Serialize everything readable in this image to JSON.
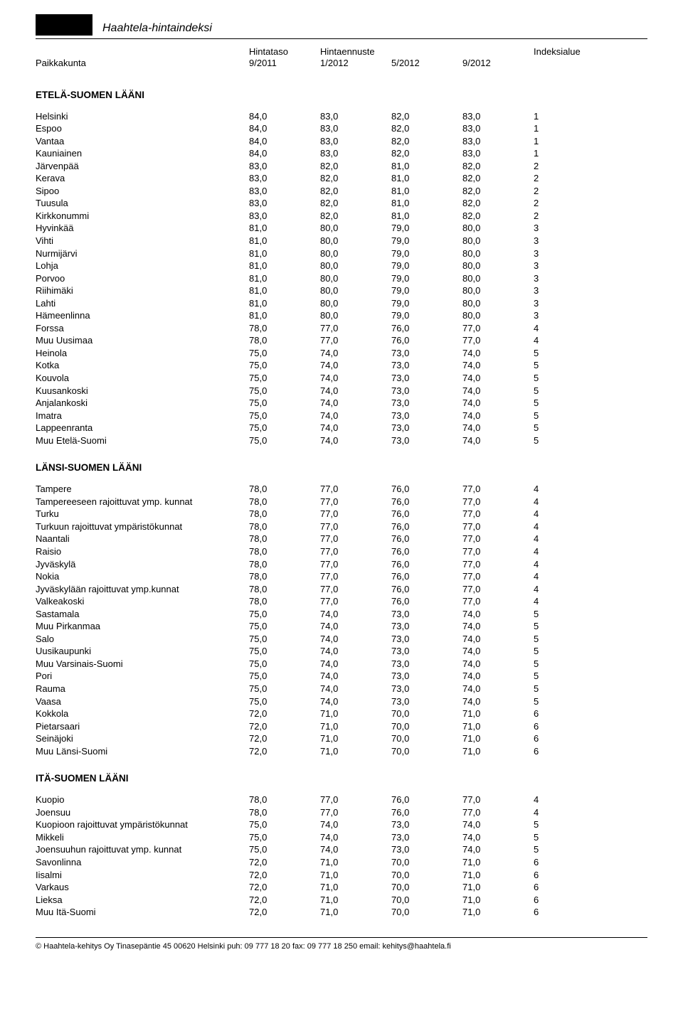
{
  "doc_title": "Haahtela-hintaindeksi",
  "header": {
    "col1": "Paikkakunta",
    "col2_top": "Hintataso",
    "col2_bot": "9/2011",
    "col3_top": "Hintaennuste",
    "col3_bot": "1/2012",
    "col4_top": "",
    "col4_bot": "5/2012",
    "col5_top": "",
    "col5_bot": "9/2012",
    "col6_top": "Indeksialue",
    "col6_bot": ""
  },
  "sections": [
    {
      "title": "ETELÄ-SUOMEN LÄÄNI",
      "rows": [
        [
          "Helsinki",
          "84,0",
          "83,0",
          "82,0",
          "83,0",
          "1"
        ],
        [
          "Espoo",
          "84,0",
          "83,0",
          "82,0",
          "83,0",
          "1"
        ],
        [
          "Vantaa",
          "84,0",
          "83,0",
          "82,0",
          "83,0",
          "1"
        ],
        [
          "Kauniainen",
          "84,0",
          "83,0",
          "82,0",
          "83,0",
          "1"
        ],
        [
          "Järvenpää",
          "83,0",
          "82,0",
          "81,0",
          "82,0",
          "2"
        ],
        [
          "Kerava",
          "83,0",
          "82,0",
          "81,0",
          "82,0",
          "2"
        ],
        [
          "Sipoo",
          "83,0",
          "82,0",
          "81,0",
          "82,0",
          "2"
        ],
        [
          "Tuusula",
          "83,0",
          "82,0",
          "81,0",
          "82,0",
          "2"
        ],
        [
          "Kirkkonummi",
          "83,0",
          "82,0",
          "81,0",
          "82,0",
          "2"
        ],
        [
          "Hyvinkää",
          "81,0",
          "80,0",
          "79,0",
          "80,0",
          "3"
        ],
        [
          "Vihti",
          "81,0",
          "80,0",
          "79,0",
          "80,0",
          "3"
        ],
        [
          "Nurmijärvi",
          "81,0",
          "80,0",
          "79,0",
          "80,0",
          "3"
        ],
        [
          "Lohja",
          "81,0",
          "80,0",
          "79,0",
          "80,0",
          "3"
        ],
        [
          "Porvoo",
          "81,0",
          "80,0",
          "79,0",
          "80,0",
          "3"
        ],
        [
          "Riihimäki",
          "81,0",
          "80,0",
          "79,0",
          "80,0",
          "3"
        ],
        [
          "Lahti",
          "81,0",
          "80,0",
          "79,0",
          "80,0",
          "3"
        ],
        [
          "Hämeenlinna",
          "81,0",
          "80,0",
          "79,0",
          "80,0",
          "3"
        ],
        [
          "Forssa",
          "78,0",
          "77,0",
          "76,0",
          "77,0",
          "4"
        ],
        [
          "Muu Uusimaa",
          "78,0",
          "77,0",
          "76,0",
          "77,0",
          "4"
        ],
        [
          "Heinola",
          "75,0",
          "74,0",
          "73,0",
          "74,0",
          "5"
        ],
        [
          "Kotka",
          "75,0",
          "74,0",
          "73,0",
          "74,0",
          "5"
        ],
        [
          "Kouvola",
          "75,0",
          "74,0",
          "73,0",
          "74,0",
          "5"
        ],
        [
          "Kuusankoski",
          "75,0",
          "74,0",
          "73,0",
          "74,0",
          "5"
        ],
        [
          "Anjalankoski",
          "75,0",
          "74,0",
          "73,0",
          "74,0",
          "5"
        ],
        [
          "Imatra",
          "75,0",
          "74,0",
          "73,0",
          "74,0",
          "5"
        ],
        [
          "Lappeenranta",
          "75,0",
          "74,0",
          "73,0",
          "74,0",
          "5"
        ],
        [
          "Muu Etelä-Suomi",
          "75,0",
          "74,0",
          "73,0",
          "74,0",
          "5"
        ]
      ]
    },
    {
      "title": "LÄNSI-SUOMEN LÄÄNI",
      "rows": [
        [
          "Tampere",
          "78,0",
          "77,0",
          "76,0",
          "77,0",
          "4"
        ],
        [
          "Tampereeseen rajoittuvat ymp. kunnat",
          "78,0",
          "77,0",
          "76,0",
          "77,0",
          "4"
        ],
        [
          "Turku",
          "78,0",
          "77,0",
          "76,0",
          "77,0",
          "4"
        ],
        [
          "Turkuun rajoittuvat ympäristökunnat",
          "78,0",
          "77,0",
          "76,0",
          "77,0",
          "4"
        ],
        [
          "Naantali",
          "78,0",
          "77,0",
          "76,0",
          "77,0",
          "4"
        ],
        [
          "Raisio",
          "78,0",
          "77,0",
          "76,0",
          "77,0",
          "4"
        ],
        [
          "Jyväskylä",
          "78,0",
          "77,0",
          "76,0",
          "77,0",
          "4"
        ],
        [
          "Nokia",
          "78,0",
          "77,0",
          "76,0",
          "77,0",
          "4"
        ],
        [
          "Jyväskylään rajoittuvat ymp.kunnat",
          "78,0",
          "77,0",
          "76,0",
          "77,0",
          "4"
        ],
        [
          "Valkeakoski",
          "78,0",
          "77,0",
          "76,0",
          "77,0",
          "4"
        ],
        [
          "Sastamala",
          "75,0",
          "74,0",
          "73,0",
          "74,0",
          "5"
        ],
        [
          "Muu Pirkanmaa",
          "75,0",
          "74,0",
          "73,0",
          "74,0",
          "5"
        ],
        [
          "Salo",
          "75,0",
          "74,0",
          "73,0",
          "74,0",
          "5"
        ],
        [
          "Uusikaupunki",
          "75,0",
          "74,0",
          "73,0",
          "74,0",
          "5"
        ],
        [
          "Muu Varsinais-Suomi",
          "75,0",
          "74,0",
          "73,0",
          "74,0",
          "5"
        ],
        [
          "Pori",
          "75,0",
          "74,0",
          "73,0",
          "74,0",
          "5"
        ],
        [
          "Rauma",
          "75,0",
          "74,0",
          "73,0",
          "74,0",
          "5"
        ],
        [
          "Vaasa",
          "75,0",
          "74,0",
          "73,0",
          "74,0",
          "5"
        ],
        [
          "Kokkola",
          "72,0",
          "71,0",
          "70,0",
          "71,0",
          "6"
        ],
        [
          "Pietarsaari",
          "72,0",
          "71,0",
          "70,0",
          "71,0",
          "6"
        ],
        [
          "Seinäjoki",
          "72,0",
          "71,0",
          "70,0",
          "71,0",
          "6"
        ],
        [
          "Muu Länsi-Suomi",
          "72,0",
          "71,0",
          "70,0",
          "71,0",
          "6"
        ]
      ]
    },
    {
      "title": "ITÄ-SUOMEN LÄÄNI",
      "rows": [
        [
          "Kuopio",
          "78,0",
          "77,0",
          "76,0",
          "77,0",
          "4"
        ],
        [
          "Joensuu",
          "78,0",
          "77,0",
          "76,0",
          "77,0",
          "4"
        ],
        [
          "Kuopioon rajoittuvat ympäristökunnat",
          "75,0",
          "74,0",
          "73,0",
          "74,0",
          "5"
        ],
        [
          "Mikkeli",
          "75,0",
          "74,0",
          "73,0",
          "74,0",
          "5"
        ],
        [
          "Joensuuhun rajoittuvat ymp. kunnat",
          "75,0",
          "74,0",
          "73,0",
          "74,0",
          "5"
        ],
        [
          "Savonlinna",
          "72,0",
          "71,0",
          "70,0",
          "71,0",
          "6"
        ],
        [
          "Iisalmi",
          "72,0",
          "71,0",
          "70,0",
          "71,0",
          "6"
        ],
        [
          "Varkaus",
          "72,0",
          "71,0",
          "70,0",
          "71,0",
          "6"
        ],
        [
          "Lieksa",
          "72,0",
          "71,0",
          "70,0",
          "71,0",
          "6"
        ],
        [
          "Muu Itä-Suomi",
          "72,0",
          "71,0",
          "70,0",
          "71,0",
          "6"
        ]
      ]
    }
  ],
  "footer": "©  Haahtela-kehitys Oy  Tinasepäntie 45  00620  Helsinki   puh: 09 777 18 20   fax: 09 777 18 250   email:  kehitys@haahtela.fi"
}
